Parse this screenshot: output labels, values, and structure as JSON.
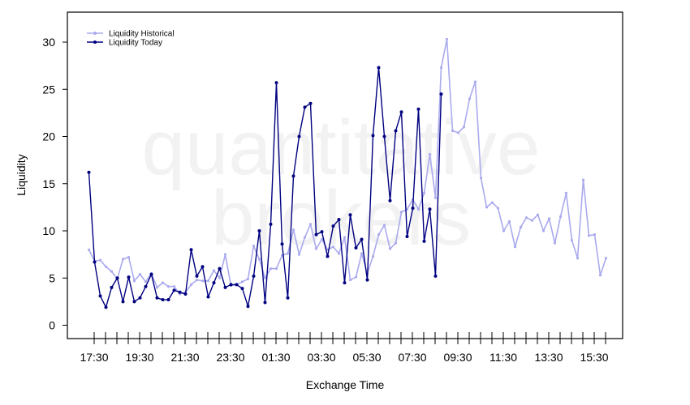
{
  "chart_data": {
    "type": "line",
    "xlabel": "Exchange Time",
    "ylabel": "Liquidity",
    "ylim": [
      0,
      30
    ],
    "y_ticks": [
      0,
      5,
      10,
      15,
      20,
      25,
      30
    ],
    "x_tick_labels": [
      "17:30",
      "19:30",
      "21:30",
      "23:30",
      "01:30",
      "03:30",
      "05:30",
      "07:30",
      "09:30",
      "11:30",
      "13:30",
      "15:30"
    ],
    "x_tick_interval_minutes": 120,
    "x_minor_tick_interval_minutes": 30,
    "x_start": "17:00",
    "watermark": [
      "quantitative",
      "brokers"
    ],
    "legend_position": "top-left",
    "grid": false,
    "series": [
      {
        "name": "Liquidity Historical",
        "color": "#aaaaee",
        "values": [
          8.0,
          6.8,
          6.9,
          6.2,
          5.7,
          4.9,
          7.0,
          7.2,
          4.7,
          5.4,
          4.6,
          5.5,
          4.0,
          4.5,
          4.1,
          4.1,
          3.3,
          3.5,
          4.3,
          4.8,
          4.7,
          4.7,
          5.8,
          5.0,
          7.5,
          4.2,
          4.3,
          4.6,
          4.9,
          8.4,
          7.0,
          5.0,
          6.0,
          6.0,
          7.4,
          7.6,
          10.1,
          7.5,
          9.3,
          10.7,
          8.1,
          9.1,
          8.0,
          8.3,
          7.6,
          9.3,
          4.8,
          5.1,
          7.6,
          5.5,
          7.3,
          9.6,
          10.6,
          8.1,
          8.7,
          12.0,
          12.3,
          13.3,
          12.3,
          14.0,
          18.1,
          13.5,
          27.3,
          30.3,
          20.6,
          20.4,
          21.0,
          24.0,
          25.8,
          15.6,
          12.5,
          13.0,
          12.4,
          10.0,
          11.0,
          8.3,
          10.4,
          11.4,
          11.1,
          11.7,
          10.0,
          11.3,
          8.7,
          11.5,
          14.0,
          9.0,
          7.1,
          15.4,
          9.5,
          9.6,
          5.3,
          7.1
        ]
      },
      {
        "name": "Liquidity Today",
        "color": "#000080",
        "values": [
          16.2,
          6.7,
          3.1,
          1.9,
          4.0,
          5.0,
          2.5,
          5.1,
          2.5,
          2.9,
          4.1,
          5.4,
          2.9,
          2.7,
          2.7,
          3.7,
          3.5,
          3.3,
          8.0,
          5.2,
          6.2,
          3.0,
          4.5,
          6.0,
          4.0,
          4.3,
          4.3,
          3.9,
          2.0,
          5.2,
          10.0,
          2.4,
          10.7,
          25.7,
          8.6,
          2.9,
          15.8,
          20.0,
          23.1,
          23.5,
          9.6,
          9.9,
          7.3,
          10.5,
          11.2,
          4.5,
          11.7,
          8.2,
          9.1,
          4.8,
          20.1,
          27.3,
          20.0,
          13.2,
          20.6,
          22.6,
          9.4,
          12.4,
          22.9,
          8.9,
          12.3,
          5.2,
          24.5
        ]
      }
    ]
  }
}
